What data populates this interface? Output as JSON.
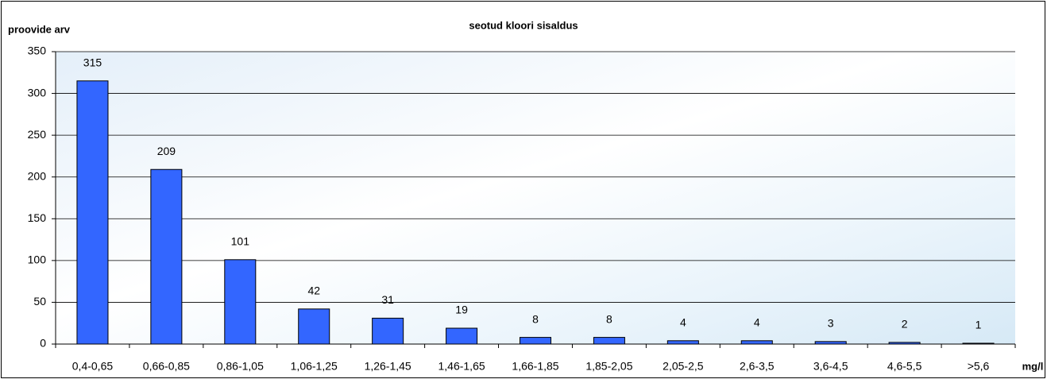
{
  "chart_data": {
    "type": "bar",
    "title": "seotud kloori sisaldus",
    "y_label": "proovide arv",
    "x_label": "mg/l",
    "categories": [
      "0,4-0,65",
      "0,66-0,85",
      "0,86-1,05",
      "1,06-1,25",
      "1,26-1,45",
      "1,46-1,65",
      "1,66-1,85",
      "1,85-2,05",
      "2,05-2,5",
      "2,6-3,5",
      "3,6-4,5",
      "4,6-5,5",
      ">5,6"
    ],
    "values": [
      315,
      209,
      101,
      42,
      31,
      19,
      8,
      8,
      4,
      4,
      3,
      2,
      1
    ],
    "color": "#3366ff",
    "ylim": [
      0,
      350
    ],
    "yticks": [
      0,
      50,
      100,
      150,
      200,
      250,
      300,
      350
    ],
    "grid": true
  }
}
